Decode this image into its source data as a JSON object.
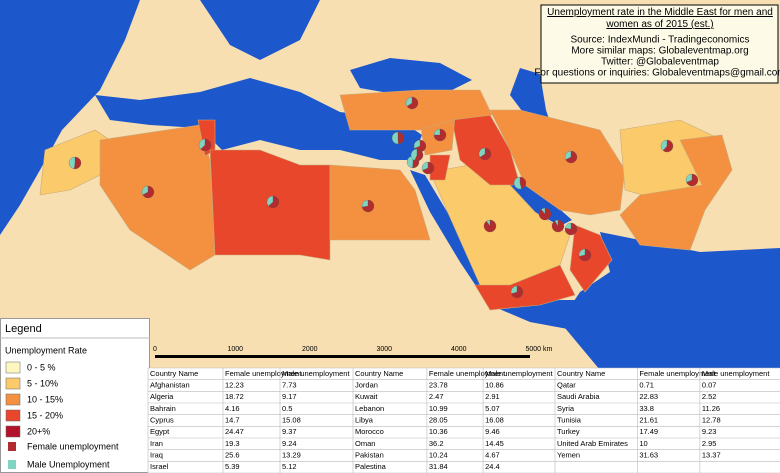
{
  "header": {
    "title": "Unemployment rate in the Middle East for men and women as of 2015 (est.)",
    "lines": [
      "Source: IndexMundi - Tradingeconomics",
      "More similar maps: Globaleventmap.org",
      "Twitter: @Globaleventmap",
      "For questions or inquiries: Globaleventmaps@gmail.com"
    ]
  },
  "legend": {
    "title": "Legend",
    "subtitle": "Unemployment Rate",
    "classes": [
      {
        "label": "0 - 5 %",
        "color": "#fdf7bf"
      },
      {
        "label": "5 - 10%",
        "color": "#fbcb6b"
      },
      {
        "label": "10 - 15%",
        "color": "#f49141"
      },
      {
        "label": "15 - 20%",
        "color": "#e8472b"
      },
      {
        "label": "20+%",
        "color": "#b3132a"
      }
    ],
    "female": {
      "label": "Female unemployment",
      "color": "#b22b2e"
    },
    "male": {
      "label": "Male Unemployment",
      "color": "#7fd4c2"
    }
  },
  "scale": [
    "0",
    "1000",
    "2000",
    "3000",
    "4000",
    "5000 km"
  ],
  "table": {
    "columns": [
      "Country Name",
      "Female unemployment",
      "Male unemployment"
    ],
    "groups": [
      [
        [
          "Afghanistan",
          12.23,
          7.73
        ],
        [
          "Algeria",
          18.72,
          9.17
        ],
        [
          "Bahrain",
          4.16,
          0.5
        ],
        [
          "Cyprus",
          14.7,
          15.08
        ],
        [
          "Egypt",
          24.47,
          9.37
        ],
        [
          "Iran",
          19.3,
          9.24
        ],
        [
          "Iraq",
          25.6,
          13.29
        ],
        [
          "Israel",
          5.39,
          5.12
        ]
      ],
      [
        [
          "Jordan",
          23.78,
          10.86
        ],
        [
          "Kuwait",
          2.47,
          2.91
        ],
        [
          "Lebanon",
          10.99,
          5.07
        ],
        [
          "Libya",
          28.05,
          16.08
        ],
        [
          "Morocco",
          10.36,
          9.46
        ],
        [
          "Oman",
          36.2,
          14.45
        ],
        [
          "Pakistan",
          10.24,
          4.67
        ],
        [
          "Palestina",
          31.84,
          24.4
        ]
      ],
      [
        [
          "Qatar",
          0.71,
          0.07
        ],
        [
          "Saudi Arabia",
          22.83,
          2.52
        ],
        [
          "Syria",
          33.8,
          11.26
        ],
        [
          "Tunisia",
          21.61,
          12.78
        ],
        [
          "Turkey",
          17.49,
          9.23
        ],
        [
          "United Arab Emirates",
          10,
          2.95
        ],
        [
          "Yemen",
          31.63,
          13.37
        ]
      ]
    ]
  }
}
